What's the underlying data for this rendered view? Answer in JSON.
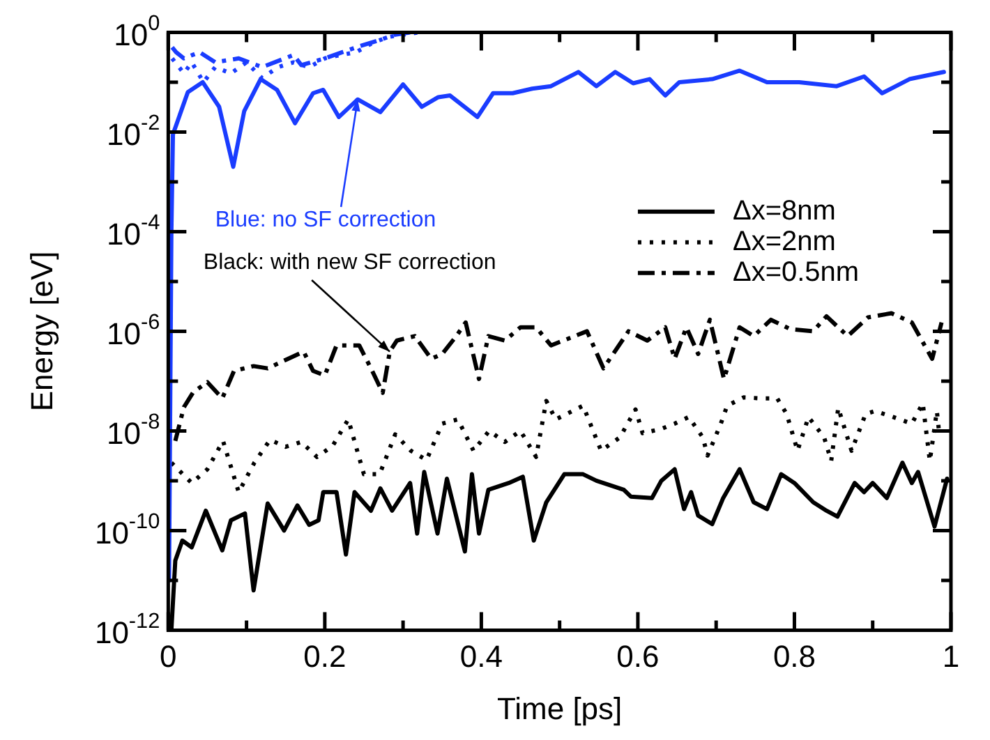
{
  "chart_data": {
    "type": "line",
    "xlabel": "Time [ps]",
    "ylabel": "Energy [eV]",
    "log": "y",
    "xlim": [
      0,
      1
    ],
    "ylim": [
      1e-12,
      1
    ],
    "xticks": [
      0,
      {
        "value": 0.1,
        "label": null
      },
      0.2,
      {
        "value": 0.3,
        "label": null
      },
      0.4,
      {
        "value": 0.5,
        "label": null
      },
      0.6,
      {
        "value": 0.7,
        "label": null
      },
      0.8,
      {
        "value": 0.9,
        "label": null
      },
      1
    ],
    "yticks": [
      {
        "value": 1e-12,
        "label": "10$^{-12}$"
      },
      {
        "value": 1e-11,
        "label": null
      },
      {
        "value": 1e-10,
        "label": "10$^{-10}$"
      },
      {
        "value": 1e-09,
        "label": null
      },
      {
        "value": 1e-08,
        "label": "10$^{-8}$"
      },
      {
        "value": 1e-07,
        "label": null
      },
      {
        "value": 1e-06,
        "label": "10$^{-6}$"
      },
      {
        "value": 1e-05,
        "label": null
      },
      {
        "value": 0.0001,
        "label": "10$^{-4}$"
      },
      {
        "value": 0.001,
        "label": null
      },
      {
        "value": 0.01,
        "label": "10$^{-2}$"
      },
      {
        "value": 0.1,
        "label": null
      },
      {
        "value": 1,
        "label": "10$^{0}$"
      }
    ],
    "grid": false,
    "legend": "top right",
    "marker": "none",
    "annotations": [
      {
        "text": "Blue: no SF correction",
        "x": 0.242,
        "y": 0.045
      },
      {
        "text": "Black: with new SF correction",
        "x": 0.283,
        "y": 3.9e-07
      }
    ],
    "series": [
      {
        "color": "#1a3cff",
        "line_style": "solid",
        "x": [
          0.001,
          0.004,
          0.006,
          0.025,
          0.044,
          0.065,
          0.083,
          0.097,
          0.118,
          0.139,
          0.162,
          0.185,
          0.198,
          0.218,
          0.242,
          0.271,
          0.3,
          0.324,
          0.345,
          0.36,
          0.395,
          0.415,
          0.44,
          0.465,
          0.489,
          0.524,
          0.547,
          0.571,
          0.594,
          0.615,
          0.635,
          0.653,
          0.695,
          0.73,
          0.765,
          0.806,
          0.854,
          0.889,
          0.912,
          0.947,
          0.991
        ],
        "values": [
          1e-11,
          0.0001,
          0.009,
          0.063,
          0.1,
          0.032,
          0.002,
          0.026,
          0.115,
          0.07,
          0.015,
          0.06,
          0.07,
          0.02,
          0.045,
          0.025,
          0.09,
          0.032,
          0.05,
          0.054,
          0.02,
          0.06,
          0.06,
          0.074,
          0.083,
          0.16,
          0.083,
          0.16,
          0.095,
          0.115,
          0.054,
          0.1,
          0.115,
          0.17,
          0.1,
          0.1,
          0.083,
          0.13,
          0.06,
          0.115,
          0.16
        ]
      },
      {
        "color": "#1a3cff",
        "line_style": "dotted",
        "x": [
          0.005,
          0.02,
          0.03,
          0.045,
          0.06,
          0.08,
          0.1,
          0.12,
          0.14,
          0.16,
          0.18,
          0.2,
          0.22,
          0.24,
          0.26,
          0.28,
          0.3,
          0.32
        ],
        "values": [
          0.3,
          0.15,
          0.25,
          0.1,
          0.2,
          0.15,
          0.25,
          0.12,
          0.2,
          0.25,
          0.2,
          0.3,
          0.35,
          0.4,
          0.6,
          0.8,
          0.9,
          1
        ]
      },
      {
        "color": "#1a3cff",
        "line_style": "dashed",
        "x": [
          0.005,
          0.01,
          0.02,
          0.04,
          0.06,
          0.09,
          0.12,
          0.16,
          0.17,
          0.2,
          0.24,
          0.27,
          0.29,
          0.31
        ],
        "values": [
          0.5,
          0.4,
          0.3,
          0.4,
          0.25,
          0.3,
          0.2,
          0.35,
          0.22,
          0.3,
          0.5,
          0.7,
          0.9,
          1
        ]
      },
      {
        "name": "Δx=8nm",
        "color": "#000000",
        "line_style": "solid",
        "x": [
          0.004,
          0.009,
          0.018,
          0.03,
          0.048,
          0.069,
          0.08,
          0.098,
          0.109,
          0.127,
          0.148,
          0.165,
          0.18,
          0.192,
          0.198,
          0.215,
          0.227,
          0.238,
          0.259,
          0.271,
          0.286,
          0.309,
          0.318,
          0.327,
          0.344,
          0.356,
          0.379,
          0.388,
          0.397,
          0.409,
          0.435,
          0.453,
          0.467,
          0.483,
          0.506,
          0.53,
          0.547,
          0.582,
          0.591,
          0.618,
          0.63,
          0.647,
          0.659,
          0.668,
          0.677,
          0.695,
          0.709,
          0.73,
          0.748,
          0.765,
          0.783,
          0.8,
          0.824,
          0.841,
          0.855,
          0.877,
          0.889,
          0.9,
          0.918,
          0.938,
          0.95,
          0.958,
          0.979,
          0.995
        ],
        "values": [
          1e-12,
          2.5e-11,
          6.3e-11,
          4.6e-11,
          2.5e-10,
          4e-11,
          1.6e-10,
          2.2e-10,
          6.3e-12,
          3.5e-10,
          1e-10,
          3.2e-10,
          1.3e-10,
          1.6e-10,
          5.9e-10,
          5.9e-10,
          3.3e-11,
          5.9e-10,
          2.5e-10,
          7e-10,
          2.5e-10,
          9e-10,
          8.7e-11,
          1.5e-09,
          8.7e-11,
          1.1e-09,
          3.8e-11,
          1.35e-09,
          8.7e-11,
          6.6e-10,
          9e-10,
          1.2e-09,
          6.3e-11,
          3.7e-10,
          1.35e-09,
          1.35e-09,
          1e-09,
          6.6e-10,
          4.8e-10,
          4.5e-10,
          1e-09,
          1.7e-09,
          2.7e-10,
          5.9e-10,
          2e-10,
          1.35e-10,
          4.5e-10,
          1.7e-09,
          3.7e-10,
          2.7e-10,
          1.35e-09,
          9e-10,
          3.7e-10,
          2.5e-10,
          1.9e-10,
          9e-10,
          5.9e-10,
          9e-10,
          4.5e-10,
          2.3e-09,
          9e-10,
          1.5e-09,
          1.2e-10,
          1.1e-09
        ]
      },
      {
        "name": "Δx=2nm",
        "color": "#000000",
        "line_style": "dotted",
        "x": [
          0.004,
          0.03,
          0.05,
          0.07,
          0.09,
          0.11,
          0.13,
          0.15,
          0.17,
          0.19,
          0.21,
          0.23,
          0.25,
          0.27,
          0.29,
          0.31,
          0.33,
          0.35,
          0.37,
          0.39,
          0.41,
          0.43,
          0.45,
          0.47,
          0.483,
          0.495,
          0.53,
          0.553,
          0.577,
          0.597,
          0.606,
          0.63,
          0.647,
          0.665,
          0.683,
          0.689,
          0.706,
          0.714,
          0.735,
          0.758,
          0.778,
          0.79,
          0.804,
          0.818,
          0.838,
          0.847,
          0.856,
          0.873,
          0.891,
          0.903,
          0.926,
          0.95,
          0.964,
          0.973,
          0.982,
          0.985
        ],
        "values": [
          2.3e-09,
          9e-10,
          1.7e-09,
          6.3e-09,
          5.9e-10,
          2.3e-09,
          6.6e-09,
          4.8e-09,
          6e-09,
          3e-09,
          5e-09,
          1.7e-08,
          1.35e-09,
          1.35e-09,
          8.5e-09,
          4e-09,
          2.6e-09,
          1.4e-08,
          1.7e-08,
          4e-09,
          1e-08,
          6e-09,
          1e-08,
          3e-09,
          4e-08,
          1.7e-08,
          3.2e-08,
          4e-09,
          7.4e-09,
          2.7e-08,
          9e-09,
          1.1e-08,
          1.4e-08,
          1.9e-08,
          7.4e-09,
          3.2e-09,
          1.4e-08,
          3.2e-08,
          4.7e-08,
          4.5e-08,
          4.5e-08,
          2.2e-08,
          4e-09,
          1.9e-08,
          7.4e-09,
          2.5e-09,
          2.9e-08,
          4e-09,
          2.2e-08,
          2.5e-08,
          1.9e-08,
          1.4e-08,
          3.6e-08,
          2.5e-09,
          2.5e-08,
          9e-09
        ]
      },
      {
        "name": "Δx=0.5nm",
        "color": "#000000",
        "line_style": "dashed",
        "x": [
          0.009,
          0.02,
          0.032,
          0.05,
          0.069,
          0.084,
          0.109,
          0.127,
          0.153,
          0.173,
          0.185,
          0.2,
          0.215,
          0.244,
          0.259,
          0.274,
          0.283,
          0.292,
          0.315,
          0.336,
          0.35,
          0.368,
          0.38,
          0.397,
          0.409,
          0.43,
          0.45,
          0.47,
          0.489,
          0.535,
          0.556,
          0.588,
          0.612,
          0.635,
          0.647,
          0.662,
          0.677,
          0.692,
          0.71,
          0.73,
          0.748,
          0.77,
          0.795,
          0.824,
          0.841,
          0.868,
          0.894,
          0.924,
          0.95,
          0.976,
          0.988
        ],
        "values": [
          6.3e-09,
          3e-08,
          6e-08,
          9.5e-08,
          4.5e-08,
          1.6e-07,
          2e-07,
          1.8e-07,
          2.8e-07,
          3.9e-07,
          1.6e-07,
          1.3e-07,
          5.2e-07,
          5.2e-07,
          1.8e-07,
          5.8e-08,
          3.9e-07,
          6.5e-07,
          8e-07,
          2.8e-07,
          3.5e-07,
          8e-07,
          1.5e-06,
          1.1e-07,
          8e-07,
          6.5e-07,
          1.2e-06,
          1.2e-06,
          5.2e-07,
          1e-06,
          1.8e-07,
          1e-06,
          6.5e-07,
          1.2e-06,
          2.8e-07,
          1.2e-06,
          3.5e-07,
          1.7e-06,
          1.1e-07,
          1.2e-06,
          8e-07,
          1.7e-06,
          1.1e-06,
          1e-06,
          2e-06,
          8e-07,
          1.9e-06,
          2.3e-06,
          1.5e-06,
          2.8e-07,
          1.5e-06
        ]
      }
    ]
  }
}
